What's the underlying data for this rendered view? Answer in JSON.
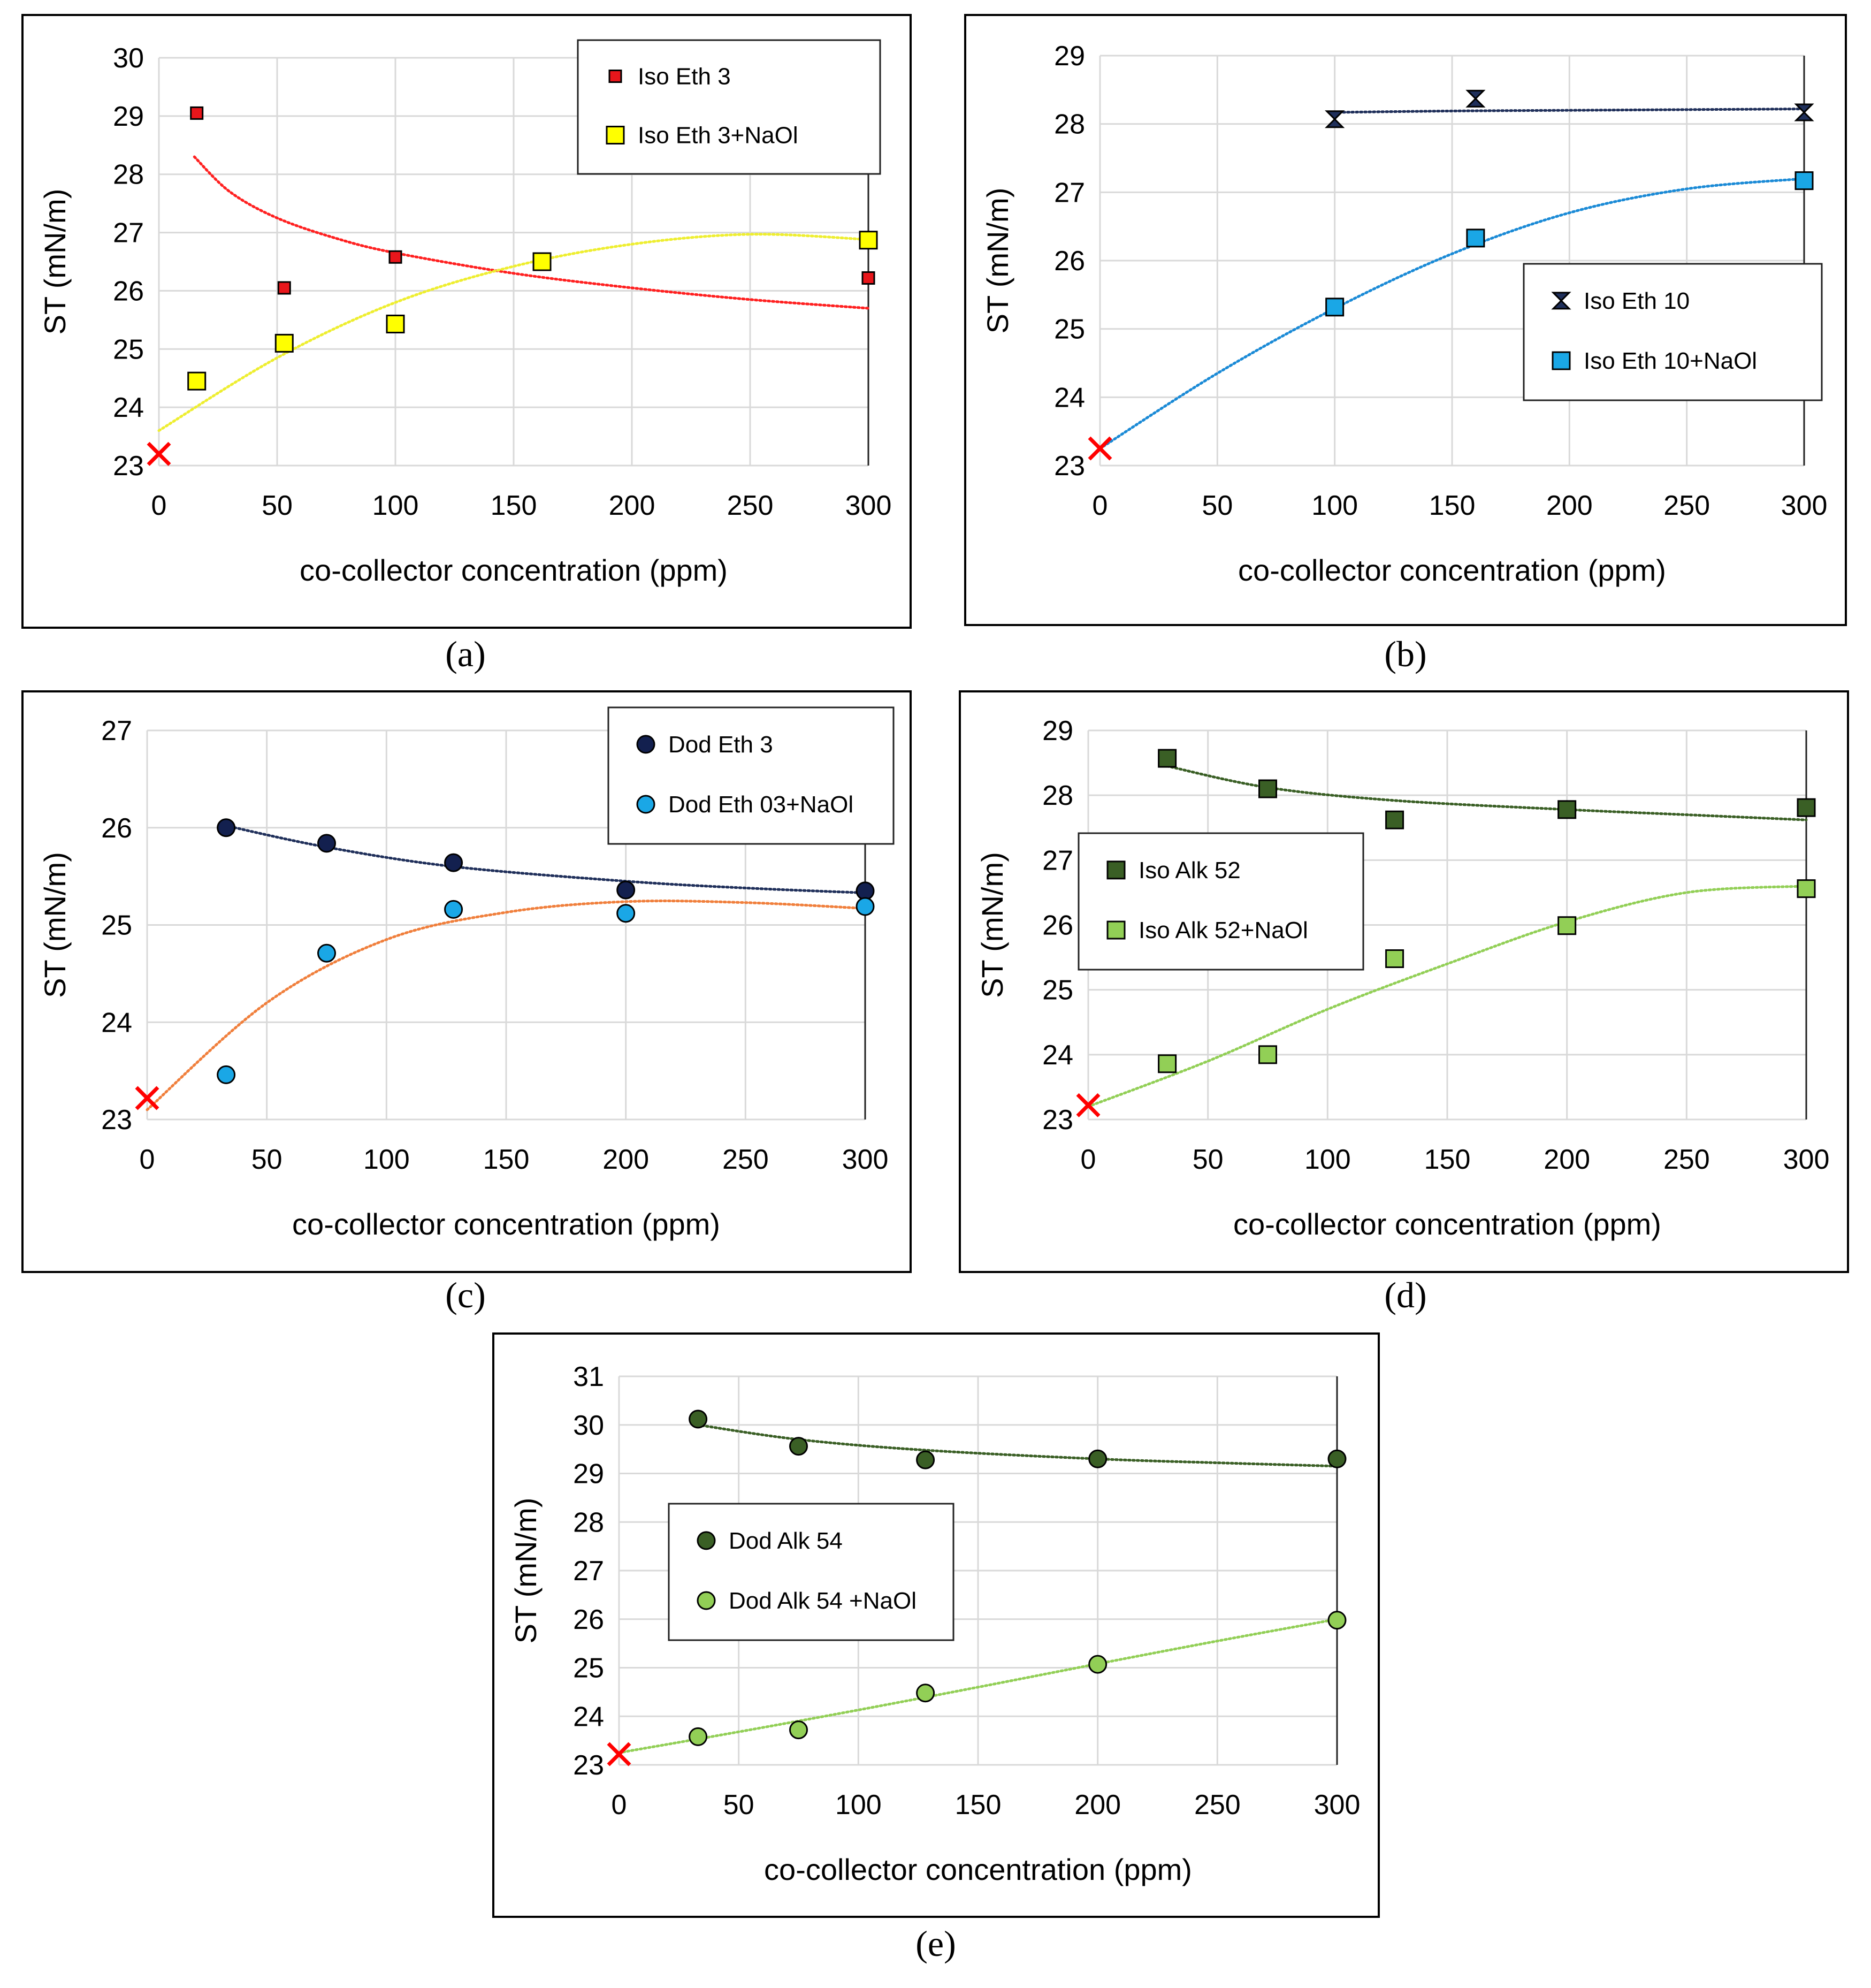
{
  "chart_data": [
    {
      "type": "scatter",
      "panel_label": "(a)",
      "panel_letter": "a",
      "xlabel": "co-collector concentration (ppm)",
      "ylabel": "ST (mN/m)",
      "xlim": [
        0,
        300
      ],
      "ylim": [
        23,
        30
      ],
      "xticks": [
        0,
        50,
        100,
        150,
        200,
        250,
        300
      ],
      "yticks": [
        23,
        24,
        25,
        26,
        27,
        28,
        29,
        30
      ],
      "legend_position": "top-right",
      "reference_point": {
        "x": 0,
        "y": 23.2,
        "marker": "cross",
        "color": "#ff0000"
      },
      "series": [
        {
          "name": "Iso Eth 3",
          "marker": "square-small",
          "fill": "#e8161b",
          "trend": "#ff2020",
          "x": [
            16,
            53,
            100,
            300
          ],
          "y": [
            29.05,
            26.05,
            26.58,
            26.22
          ],
          "fit_x": [
            15,
            30,
            50,
            75,
            100,
            150,
            200,
            250,
            300
          ],
          "fit_y": [
            28.3,
            27.7,
            27.25,
            26.9,
            26.65,
            26.3,
            26.05,
            25.85,
            25.7
          ]
        },
        {
          "name": "Iso Eth 3+NaOl",
          "marker": "square",
          "fill": "#ffff00",
          "trend": "#eeee30",
          "x": [
            16,
            53,
            100,
            162,
            300
          ],
          "y": [
            24.45,
            25.1,
            25.43,
            26.5,
            26.87
          ],
          "fit_x": [
            0,
            50,
            100,
            150,
            200,
            250,
            300
          ],
          "fit_y": [
            23.6,
            24.85,
            25.8,
            26.42,
            26.8,
            26.97,
            26.88
          ]
        }
      ]
    },
    {
      "type": "scatter",
      "panel_label": "(b)",
      "panel_letter": "b",
      "xlabel": "co-collector concentration (ppm)",
      "ylabel": "ST (mN/m)",
      "xlim": [
        0,
        300
      ],
      "ylim": [
        23,
        29
      ],
      "xticks": [
        0,
        50,
        100,
        150,
        200,
        250,
        300
      ],
      "yticks": [
        23,
        24,
        25,
        26,
        27,
        28,
        29
      ],
      "legend_position": "center-right",
      "reference_point": {
        "x": 0,
        "y": 23.25,
        "marker": "cross",
        "color": "#ff0000"
      },
      "series": [
        {
          "name": "Iso Eth 10",
          "marker": "bowtie",
          "fill": "#1f2f5a",
          "trend": "#1f2f5a",
          "x": [
            100,
            160,
            300
          ],
          "y": [
            28.07,
            28.37,
            28.17
          ],
          "fit_x": [
            100,
            150,
            200,
            250,
            300
          ],
          "fit_y": [
            28.17,
            28.19,
            28.2,
            28.21,
            28.22
          ]
        },
        {
          "name": "Iso Eth 10+NaOl",
          "marker": "square",
          "fill": "#1aa7e6",
          "trend": "#1a8ad6",
          "x": [
            100,
            160,
            300
          ],
          "y": [
            25.32,
            26.33,
            27.17
          ],
          "fit_x": [
            0,
            50,
            100,
            150,
            200,
            250,
            300
          ],
          "fit_y": [
            23.25,
            24.35,
            25.3,
            26.1,
            26.7,
            27.05,
            27.2
          ]
        }
      ]
    },
    {
      "type": "scatter",
      "panel_label": "(c)",
      "panel_letter": "c",
      "xlabel": "co-collector concentration (ppm)",
      "ylabel": "ST (mN/m)",
      "xlim": [
        0,
        300
      ],
      "ylim": [
        23,
        27
      ],
      "xticks": [
        0,
        50,
        100,
        150,
        200,
        250,
        300
      ],
      "yticks": [
        23,
        24,
        25,
        26,
        27
      ],
      "legend_position": "top-right",
      "reference_point": {
        "x": 0,
        "y": 23.22,
        "marker": "cross",
        "color": "#ff0000"
      },
      "series": [
        {
          "name": "Dod Eth 3",
          "marker": "circle",
          "fill": "#13204f",
          "trend": "#1f2f5a",
          "x": [
            33,
            75,
            128,
            200,
            300
          ],
          "y": [
            26.0,
            25.84,
            25.64,
            25.36,
            25.35
          ],
          "fit_x": [
            33,
            75,
            128,
            200,
            250,
            300
          ],
          "fit_y": [
            26.02,
            25.8,
            25.6,
            25.45,
            25.38,
            25.33
          ]
        },
        {
          "name": "Dod Eth 03+NaOl",
          "marker": "circle",
          "fill": "#1aa7e6",
          "trend": "#f07f3c",
          "x": [
            33,
            75,
            128,
            200,
            300
          ],
          "y": [
            23.46,
            24.71,
            25.16,
            25.12,
            25.19
          ],
          "fit_x": [
            0,
            50,
            100,
            150,
            200,
            250,
            300
          ],
          "fit_y": [
            23.1,
            24.2,
            24.85,
            25.13,
            25.24,
            25.23,
            25.17
          ]
        }
      ]
    },
    {
      "type": "scatter",
      "panel_label": "(d)",
      "panel_letter": "d",
      "xlabel": "co-collector concentration (ppm)",
      "ylabel": "ST (mN/m)",
      "xlim": [
        0,
        300
      ],
      "ylim": [
        23,
        29
      ],
      "xticks": [
        0,
        50,
        100,
        150,
        200,
        250,
        300
      ],
      "yticks": [
        23,
        24,
        25,
        26,
        27,
        28,
        29
      ],
      "legend_position": "center-left",
      "reference_point": {
        "x": 0,
        "y": 23.22,
        "marker": "cross",
        "color": "#ff0000"
      },
      "series": [
        {
          "name": "Iso Alk 52",
          "marker": "square",
          "fill": "#3a5f25",
          "trend": "#3a5f25",
          "x": [
            33,
            75,
            128,
            200,
            300
          ],
          "y": [
            28.57,
            28.1,
            27.62,
            27.78,
            27.81
          ],
          "fit_x": [
            33,
            75,
            128,
            200,
            250,
            300
          ],
          "fit_y": [
            28.45,
            28.12,
            27.92,
            27.78,
            27.7,
            27.62
          ]
        },
        {
          "name": "Iso Alk 52+NaOl",
          "marker": "square",
          "fill": "#92cf56",
          "trend": "#92cf56",
          "x": [
            33,
            75,
            128,
            200,
            300
          ],
          "y": [
            23.86,
            24.0,
            25.48,
            25.99,
            26.56
          ],
          "fit_x": [
            0,
            50,
            100,
            150,
            200,
            250,
            300
          ],
          "fit_y": [
            23.2,
            23.9,
            24.7,
            25.4,
            26.05,
            26.5,
            26.6
          ]
        }
      ]
    },
    {
      "type": "scatter",
      "panel_label": "(e)",
      "panel_letter": "e",
      "xlabel": "co-collector concentration (ppm)",
      "ylabel": "ST (mN/m)",
      "xlim": [
        0,
        300
      ],
      "ylim": [
        23,
        31
      ],
      "xticks": [
        0,
        50,
        100,
        150,
        200,
        250,
        300
      ],
      "yticks": [
        23,
        24,
        25,
        26,
        27,
        28,
        29,
        30,
        31
      ],
      "legend_position": "center-left",
      "reference_point": {
        "x": 0,
        "y": 23.22,
        "marker": "cross",
        "color": "#ff0000"
      },
      "series": [
        {
          "name": "Dod Alk 54",
          "marker": "circle",
          "fill": "#3a5f25",
          "trend": "#3a5f25",
          "x": [
            33,
            75,
            128,
            200,
            300
          ],
          "y": [
            30.12,
            29.56,
            29.28,
            29.3,
            29.3
          ],
          "fit_x": [
            33,
            75,
            128,
            200,
            250,
            300
          ],
          "fit_y": [
            30.0,
            29.7,
            29.48,
            29.3,
            29.22,
            29.15
          ]
        },
        {
          "name": "Dod Alk 54 +NaOl",
          "marker": "circle",
          "fill": "#92cf56",
          "trend": "#92cf56",
          "x": [
            33,
            75,
            128,
            200,
            300
          ],
          "y": [
            23.58,
            23.72,
            24.48,
            25.07,
            25.98
          ],
          "fit_x": [
            0,
            50,
            100,
            150,
            200,
            250,
            300
          ],
          "fit_y": [
            23.25,
            23.68,
            24.13,
            24.6,
            25.08,
            25.55,
            26.0
          ]
        }
      ]
    }
  ]
}
